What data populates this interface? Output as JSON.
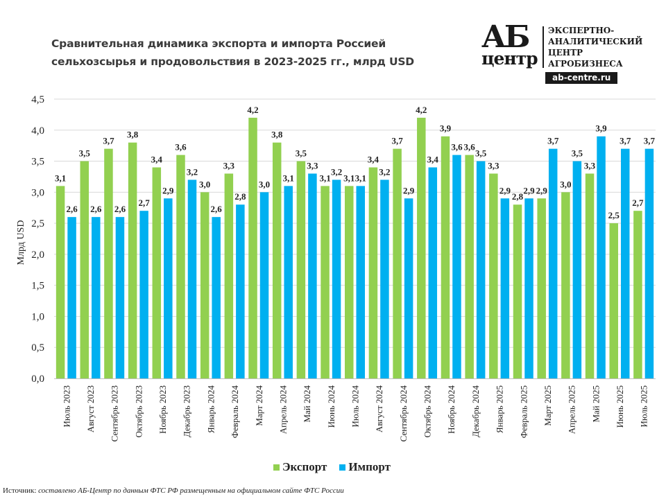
{
  "header": {
    "title_line1": "Сравнительная динамика экспорта и импорта Россией",
    "title_line2": "сельхозсырья и продовольствия в 2023-2025 гг., млрд USD"
  },
  "logo": {
    "mark_top": "АБ",
    "mark_bottom": "центр",
    "lines": [
      "ЭКСПЕРТНО-",
      "АНАЛИТИЧЕСКИЙ",
      "ЦЕНТР",
      "АГРОБИЗНЕСА"
    ],
    "url": "ab-centre.ru"
  },
  "legend": {
    "export_label": "Экспорт",
    "import_label": "Импорт"
  },
  "source": {
    "prefix": "Источник: ",
    "text": "составлено АБ-Центр по данным ФТС РФ размещенным на официальном сайте ФТС России"
  },
  "colors": {
    "export": "#92d050",
    "import": "#00b0f0",
    "grid": "#d9d9d9"
  },
  "chart_data": {
    "type": "bar",
    "title": "Сравнительная динамика экспорта и импорта Россией сельхозсырья и продовольствия в 2023-2025 гг., млрд USD",
    "xlabel": "",
    "ylabel": "Млрд USD",
    "ylim": [
      0,
      4.5
    ],
    "yticks": [
      "0,0",
      "0,5",
      "1,0",
      "1,5",
      "2,0",
      "2,5",
      "3,0",
      "3,5",
      "4,0",
      "4,5"
    ],
    "grid": true,
    "legend_position": "bottom",
    "categories": [
      "Июль 2023",
      "Август 2023",
      "Сентябрь 2023",
      "Октябрь 2023",
      "Ноябрь 2023",
      "Декабрь 2023",
      "Январь 2024",
      "Февраль 2024",
      "Март 2024",
      "Апрель 2024",
      "Май 2024",
      "Июнь 2024",
      "Июль 2024",
      "Август 2024",
      "Сентябрь 2024",
      "Октябрь 2024",
      "Ноябрь 2024",
      "Декабрь 2024",
      "Январь 2025",
      "Февраль 2025",
      "Март 2025",
      "Апрель 2025",
      "Май 2025",
      "Июнь 2025",
      "Июль 2025"
    ],
    "series": [
      {
        "name": "Экспорт",
        "values": [
          3.1,
          3.5,
          3.7,
          3.8,
          3.4,
          3.6,
          3.0,
          3.3,
          4.2,
          3.8,
          3.5,
          3.1,
          3.1,
          3.4,
          3.7,
          4.2,
          3.9,
          3.6,
          3.3,
          2.8,
          2.9,
          3.0,
          3.3,
          2.5,
          2.7
        ]
      },
      {
        "name": "Импорт",
        "values": [
          2.6,
          2.6,
          2.6,
          2.7,
          2.9,
          3.2,
          2.6,
          2.8,
          3.0,
          3.1,
          3.3,
          3.2,
          3.1,
          3.2,
          2.9,
          3.4,
          3.6,
          3.5,
          2.9,
          2.9,
          3.7,
          3.5,
          3.9,
          3.7,
          3.7
        ]
      }
    ]
  }
}
